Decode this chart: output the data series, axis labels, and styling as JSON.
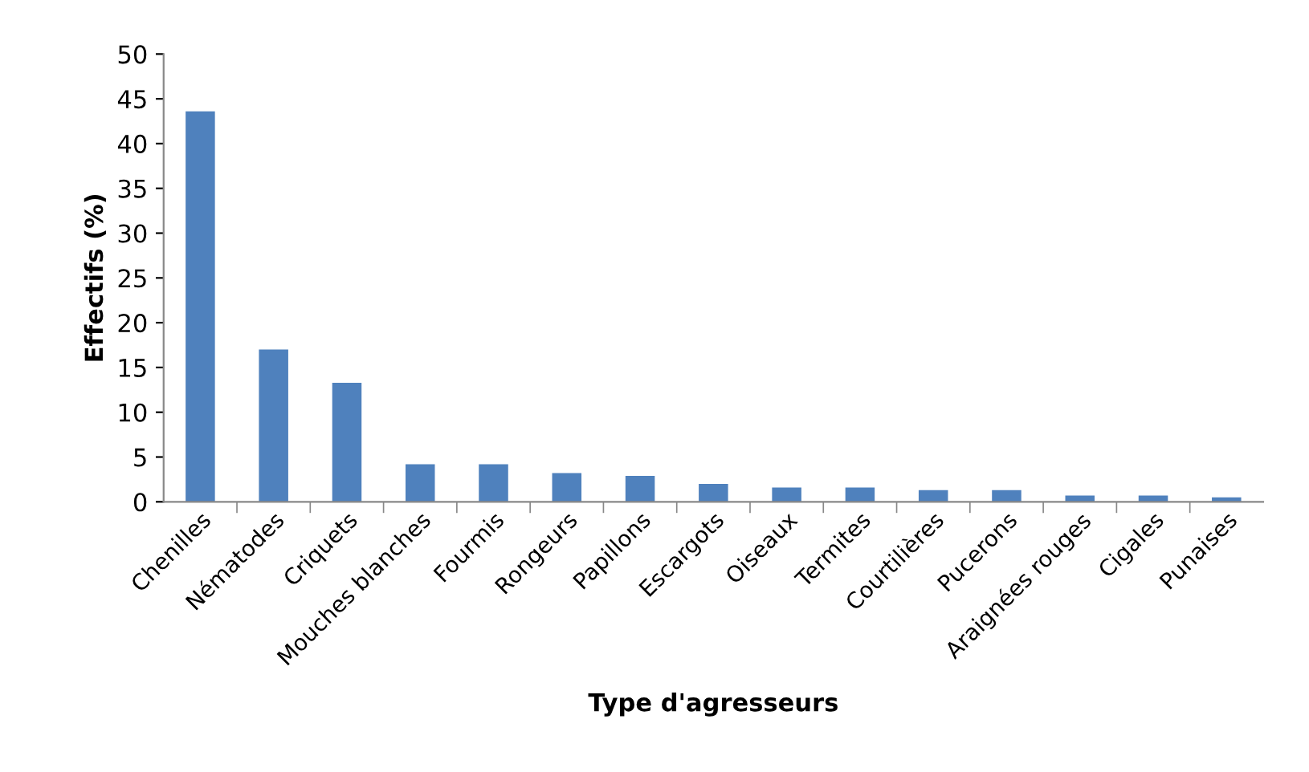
{
  "chart_data": {
    "type": "bar",
    "xlabel": "Type d'agresseurs",
    "ylabel": "Effectifs (%)",
    "categories": [
      "Chenilles",
      "Nématodes",
      "Criquets",
      "Mouches blanches",
      "Fourmis",
      "Rongeurs",
      "Papillons",
      "Escargots",
      "Oiseaux",
      "Termites",
      "Courtilières",
      "Pucerons",
      "Araignées rouges",
      "Cigales",
      "Punaises"
    ],
    "values": [
      43.6,
      17.0,
      13.3,
      4.2,
      4.2,
      3.2,
      2.9,
      2.0,
      1.6,
      1.6,
      1.3,
      1.3,
      0.7,
      0.7,
      0.5
    ],
    "color": "#4f81bd",
    "ylim": [
      0,
      50
    ],
    "yticks": [
      0,
      5,
      10,
      15,
      20,
      25,
      30,
      35,
      40,
      45,
      50
    ],
    "grid": false,
    "legend": false
  }
}
